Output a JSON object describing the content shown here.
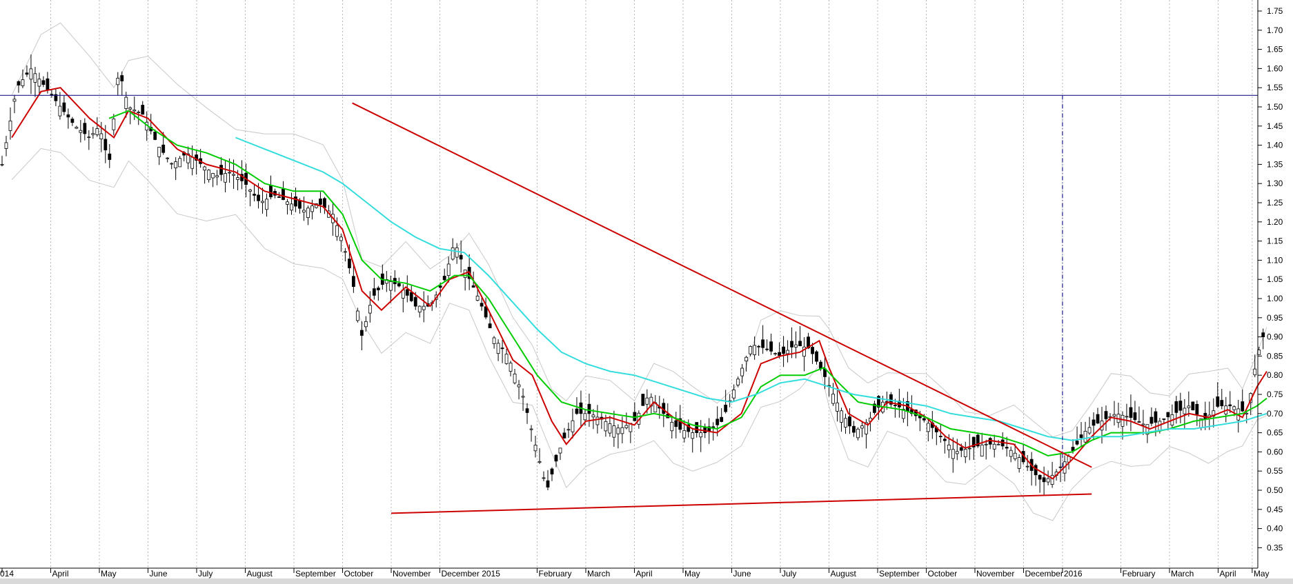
{
  "chart_data": {
    "type": "candlestick",
    "title": "",
    "xlabel": "",
    "ylabel": "",
    "ylim": [
      0.3,
      1.8
    ],
    "y_ticks": [
      "1.75",
      "1.70",
      "1.65",
      "1.60",
      "1.55",
      "1.50",
      "1.45",
      "1.40",
      "1.35",
      "1.30",
      "1.25",
      "1.20",
      "1.15",
      "1.10",
      "1.05",
      "1.00",
      "0.95",
      "0.90",
      "0.85",
      "0.80",
      "0.75",
      "0.70",
      "0.65",
      "0.60",
      "0.55",
      "0.50",
      "0.45",
      "0.40",
      "0.35"
    ],
    "x_ticks": [
      "014",
      "April",
      "May",
      "June",
      "July",
      "August",
      "September",
      "October",
      "November",
      "December 2015",
      "February",
      "March",
      "April",
      "May",
      "June",
      "July",
      "August",
      "September",
      "October",
      "November",
      "December",
      "2016",
      "February",
      "March",
      "April",
      "May"
    ],
    "x_tick_index": [
      0,
      1.0,
      2.0,
      3.0,
      4.0,
      5.0,
      6.0,
      7.0,
      8.0,
      9.0,
      11.0,
      12.0,
      13.0,
      14.0,
      15.0,
      16.0,
      17.0,
      18.0,
      19.0,
      20.0,
      21.0,
      21.8,
      23.0,
      24.0,
      25.0,
      25.7
    ],
    "close_approx": [
      [
        0.0,
        1.35
      ],
      [
        0.3,
        1.55
      ],
      [
        0.6,
        1.6
      ],
      [
        0.9,
        1.55
      ],
      [
        1.2,
        1.5
      ],
      [
        1.5,
        1.45
      ],
      [
        1.8,
        1.42
      ],
      [
        2.0,
        1.45
      ],
      [
        2.2,
        1.35
      ],
      [
        2.4,
        1.6
      ],
      [
        2.6,
        1.5
      ],
      [
        2.9,
        1.48
      ],
      [
        3.2,
        1.4
      ],
      [
        3.5,
        1.35
      ],
      [
        3.8,
        1.38
      ],
      [
        4.1,
        1.35
      ],
      [
        4.4,
        1.32
      ],
      [
        4.7,
        1.33
      ],
      [
        5.0,
        1.3
      ],
      [
        5.3,
        1.25
      ],
      [
        5.6,
        1.27
      ],
      [
        5.9,
        1.25
      ],
      [
        6.2,
        1.23
      ],
      [
        6.5,
        1.25
      ],
      [
        6.8,
        1.22
      ],
      [
        7.0,
        1.15
      ],
      [
        7.2,
        1.05
      ],
      [
        7.4,
        0.9
      ],
      [
        7.6,
        1.0
      ],
      [
        7.9,
        1.05
      ],
      [
        8.2,
        1.03
      ],
      [
        8.5,
        0.98
      ],
      [
        8.8,
        0.98
      ],
      [
        9.1,
        1.05
      ],
      [
        9.3,
        1.15
      ],
      [
        9.5,
        1.08
      ],
      [
        9.8,
        1.0
      ],
      [
        10.1,
        0.9
      ],
      [
        10.4,
        0.85
      ],
      [
        10.7,
        0.75
      ],
      [
        11.0,
        0.6
      ],
      [
        11.2,
        0.5
      ],
      [
        11.5,
        0.62
      ],
      [
        11.8,
        0.7
      ],
      [
        12.1,
        0.7
      ],
      [
        12.4,
        0.68
      ],
      [
        12.7,
        0.66
      ],
      [
        13.0,
        0.68
      ],
      [
        13.3,
        0.75
      ],
      [
        13.6,
        0.7
      ],
      [
        13.9,
        0.66
      ],
      [
        14.2,
        0.65
      ],
      [
        14.5,
        0.65
      ],
      [
        14.8,
        0.68
      ],
      [
        15.1,
        0.78
      ],
      [
        15.4,
        0.88
      ],
      [
        15.7,
        0.87
      ],
      [
        16.0,
        0.85
      ],
      [
        16.3,
        0.88
      ],
      [
        16.6,
        0.87
      ],
      [
        16.9,
        0.8
      ],
      [
        17.2,
        0.72
      ],
      [
        17.5,
        0.65
      ],
      [
        17.8,
        0.68
      ],
      [
        18.1,
        0.73
      ],
      [
        18.4,
        0.72
      ],
      [
        18.7,
        0.7
      ],
      [
        19.0,
        0.68
      ],
      [
        19.3,
        0.64
      ],
      [
        19.6,
        0.6
      ],
      [
        19.9,
        0.61
      ],
      [
        20.2,
        0.62
      ],
      [
        20.5,
        0.62
      ],
      [
        20.8,
        0.6
      ],
      [
        21.1,
        0.56
      ],
      [
        21.4,
        0.52
      ],
      [
        21.7,
        0.55
      ],
      [
        22.0,
        0.6
      ],
      [
        22.3,
        0.66
      ],
      [
        22.6,
        0.68
      ],
      [
        22.9,
        0.7
      ],
      [
        23.2,
        0.69
      ],
      [
        23.5,
        0.67
      ],
      [
        23.8,
        0.68
      ],
      [
        24.1,
        0.7
      ],
      [
        24.4,
        0.72
      ],
      [
        24.7,
        0.68
      ],
      [
        25.0,
        0.72
      ],
      [
        25.3,
        0.72
      ],
      [
        25.6,
        0.7
      ],
      [
        25.8,
        0.85
      ],
      [
        26.0,
        0.93
      ]
    ],
    "moving_averages": [
      {
        "color": "#cc0000",
        "points": [
          [
            0.2,
            1.42
          ],
          [
            0.8,
            1.54
          ],
          [
            1.2,
            1.55
          ],
          [
            1.8,
            1.47
          ],
          [
            2.3,
            1.42
          ],
          [
            2.6,
            1.49
          ],
          [
            3.0,
            1.47
          ],
          [
            3.6,
            1.39
          ],
          [
            4.2,
            1.35
          ],
          [
            4.8,
            1.33
          ],
          [
            5.4,
            1.28
          ],
          [
            6.0,
            1.26
          ],
          [
            6.6,
            1.24
          ],
          [
            7.0,
            1.18
          ],
          [
            7.4,
            1.02
          ],
          [
            7.8,
            0.97
          ],
          [
            8.3,
            1.03
          ],
          [
            8.8,
            0.98
          ],
          [
            9.2,
            1.05
          ],
          [
            9.6,
            1.07
          ],
          [
            10.0,
            0.97
          ],
          [
            10.5,
            0.84
          ],
          [
            10.9,
            0.8
          ],
          [
            11.3,
            0.68
          ],
          [
            11.6,
            0.62
          ],
          [
            12.0,
            0.68
          ],
          [
            12.5,
            0.69
          ],
          [
            13.0,
            0.67
          ],
          [
            13.4,
            0.73
          ],
          [
            13.8,
            0.69
          ],
          [
            14.2,
            0.66
          ],
          [
            14.7,
            0.65
          ],
          [
            15.2,
            0.7
          ],
          [
            15.6,
            0.83
          ],
          [
            16.0,
            0.85
          ],
          [
            16.4,
            0.86
          ],
          [
            16.8,
            0.89
          ],
          [
            17.0,
            0.82
          ],
          [
            17.4,
            0.7
          ],
          [
            17.8,
            0.67
          ],
          [
            18.2,
            0.73
          ],
          [
            18.6,
            0.72
          ],
          [
            19.0,
            0.69
          ],
          [
            19.4,
            0.64
          ],
          [
            19.8,
            0.61
          ],
          [
            20.3,
            0.63
          ],
          [
            20.8,
            0.62
          ],
          [
            21.2,
            0.56
          ],
          [
            21.6,
            0.53
          ],
          [
            22.0,
            0.58
          ],
          [
            22.4,
            0.64
          ],
          [
            22.8,
            0.69
          ],
          [
            23.2,
            0.68
          ],
          [
            23.6,
            0.66
          ],
          [
            24.0,
            0.68
          ],
          [
            24.4,
            0.7
          ],
          [
            24.8,
            0.69
          ],
          [
            25.2,
            0.71
          ],
          [
            25.5,
            0.69
          ],
          [
            25.8,
            0.77
          ],
          [
            26.0,
            0.81
          ]
        ]
      },
      {
        "color": "#00cc00",
        "points": [
          [
            2.2,
            1.47
          ],
          [
            2.6,
            1.49
          ],
          [
            3.0,
            1.45
          ],
          [
            3.6,
            1.4
          ],
          [
            4.2,
            1.38
          ],
          [
            4.8,
            1.35
          ],
          [
            5.4,
            1.3
          ],
          [
            6.0,
            1.28
          ],
          [
            6.6,
            1.28
          ],
          [
            7.0,
            1.22
          ],
          [
            7.4,
            1.1
          ],
          [
            7.8,
            1.05
          ],
          [
            8.3,
            1.04
          ],
          [
            8.8,
            1.02
          ],
          [
            9.3,
            1.06
          ],
          [
            9.6,
            1.06
          ],
          [
            10.0,
            1.0
          ],
          [
            10.5,
            0.9
          ],
          [
            11.0,
            0.8
          ],
          [
            11.5,
            0.73
          ],
          [
            12.0,
            0.71
          ],
          [
            12.5,
            0.7
          ],
          [
            13.0,
            0.69
          ],
          [
            13.4,
            0.7
          ],
          [
            13.8,
            0.69
          ],
          [
            14.2,
            0.67
          ],
          [
            14.7,
            0.66
          ],
          [
            15.2,
            0.69
          ],
          [
            15.6,
            0.77
          ],
          [
            16.0,
            0.8
          ],
          [
            16.5,
            0.8
          ],
          [
            16.9,
            0.82
          ],
          [
            17.2,
            0.78
          ],
          [
            17.6,
            0.73
          ],
          [
            18.0,
            0.72
          ],
          [
            18.5,
            0.71
          ],
          [
            19.0,
            0.69
          ],
          [
            19.5,
            0.66
          ],
          [
            20.0,
            0.65
          ],
          [
            20.5,
            0.64
          ],
          [
            21.0,
            0.62
          ],
          [
            21.5,
            0.59
          ],
          [
            22.0,
            0.6
          ],
          [
            22.4,
            0.63
          ],
          [
            22.8,
            0.65
          ],
          [
            23.2,
            0.65
          ],
          [
            23.6,
            0.65
          ],
          [
            24.0,
            0.66
          ],
          [
            24.5,
            0.68
          ],
          [
            25.0,
            0.69
          ],
          [
            25.5,
            0.7
          ],
          [
            25.8,
            0.72
          ],
          [
            26.0,
            0.74
          ]
        ]
      },
      {
        "color": "#33dddd",
        "points": [
          [
            4.8,
            1.42
          ],
          [
            5.4,
            1.39
          ],
          [
            6.0,
            1.36
          ],
          [
            6.6,
            1.33
          ],
          [
            7.0,
            1.3
          ],
          [
            7.5,
            1.25
          ],
          [
            8.0,
            1.2
          ],
          [
            8.5,
            1.16
          ],
          [
            9.0,
            1.13
          ],
          [
            9.5,
            1.12
          ],
          [
            10.0,
            1.06
          ],
          [
            10.5,
            0.99
          ],
          [
            11.0,
            0.92
          ],
          [
            11.5,
            0.86
          ],
          [
            12.0,
            0.83
          ],
          [
            12.5,
            0.81
          ],
          [
            13.0,
            0.8
          ],
          [
            13.5,
            0.78
          ],
          [
            14.0,
            0.76
          ],
          [
            14.5,
            0.74
          ],
          [
            15.0,
            0.73
          ],
          [
            15.5,
            0.75
          ],
          [
            16.0,
            0.78
          ],
          [
            16.5,
            0.79
          ],
          [
            17.0,
            0.77
          ],
          [
            17.5,
            0.75
          ],
          [
            18.0,
            0.74
          ],
          [
            18.5,
            0.73
          ],
          [
            19.0,
            0.72
          ],
          [
            19.5,
            0.7
          ],
          [
            20.0,
            0.69
          ],
          [
            20.5,
            0.68
          ],
          [
            21.0,
            0.66
          ],
          [
            21.5,
            0.64
          ],
          [
            22.0,
            0.63
          ],
          [
            22.5,
            0.64
          ],
          [
            23.0,
            0.64
          ],
          [
            23.5,
            0.65
          ],
          [
            24.0,
            0.66
          ],
          [
            24.5,
            0.66
          ],
          [
            25.0,
            0.67
          ],
          [
            25.5,
            0.68
          ],
          [
            26.0,
            0.7
          ]
        ]
      }
    ],
    "annotations": [
      {
        "kind": "trendline",
        "color": "#cc0000",
        "from": [
          7.2,
          1.51
        ],
        "to": [
          22.4,
          0.56
        ]
      },
      {
        "kind": "trendline",
        "color": "#cc0000",
        "from": [
          8.0,
          0.44
        ],
        "to": [
          22.4,
          0.49
        ]
      },
      {
        "kind": "hline",
        "color": "#1a1a8c",
        "y": 1.53
      },
      {
        "kind": "vline",
        "color": "#1a1a8c",
        "style": "dash-dot",
        "x": 21.8,
        "y_from": 1.53,
        "y_to": 0.55
      }
    ],
    "grid": "vertical-dotted",
    "bands": "bollinger"
  }
}
